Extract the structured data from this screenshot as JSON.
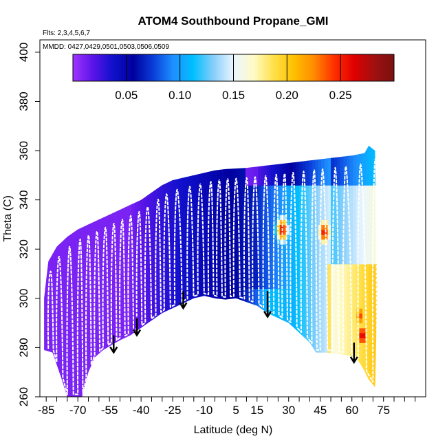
{
  "chart_data": {
    "type": "heatmap",
    "title": "ATOM4 Southbound Propane_GMI",
    "flights_label": "Flts: 2,3,4,5,6,7",
    "dates_label": "MMDD: 0427,0429,0501,0503,0506,0509",
    "xlabel": "Latitude (deg N)",
    "ylabel": "Theta (C)",
    "xlim": [
      -88,
      95
    ],
    "ylim": [
      260,
      405
    ],
    "x_ticks": [
      -85,
      -70,
      -55,
      -40,
      -25,
      -10,
      5,
      15,
      30,
      45,
      60,
      75
    ],
    "x_tick_labels": [
      "-85",
      "-70",
      "-55",
      "-40",
      "-25",
      "-10",
      "5",
      "15",
      "30",
      "45",
      "60",
      "75"
    ],
    "x_minor_step": 5,
    "y_ticks": [
      260,
      280,
      300,
      320,
      340,
      360,
      380,
      400
    ],
    "y_tick_labels": [
      "260",
      "280",
      "300",
      "320",
      "340",
      "360",
      "380",
      "400"
    ],
    "colorbar": {
      "min": 0.0,
      "max": 0.3,
      "ticks": [
        0.05,
        0.1,
        0.15,
        0.2,
        0.25
      ],
      "tick_labels": [
        "0.05",
        "0.10",
        "0.15",
        "0.20",
        "0.25"
      ],
      "colors": [
        "#9f34ff",
        "#5a14e8",
        "#1010cc",
        "#00009f",
        "#0a3dd8",
        "#1e90ff",
        "#00bfff",
        "#87cefa",
        "#eaf6ff",
        "#fffbc8",
        "#ffe14a",
        "#ffc000",
        "#ff8c00",
        "#ff3000",
        "#e00000",
        "#a01010",
        "#7a1010"
      ]
    },
    "domain": {
      "lower_boundary": [
        [
          -86,
          279
        ],
        [
          -82,
          278
        ],
        [
          -78,
          268
        ],
        [
          -75,
          260
        ],
        [
          -68,
          260
        ],
        [
          -65,
          270
        ],
        [
          -62,
          276
        ],
        [
          -58,
          279
        ],
        [
          -54,
          281
        ],
        [
          -50,
          283
        ],
        [
          -45,
          285
        ],
        [
          -40,
          288
        ],
        [
          -35,
          291
        ],
        [
          -30,
          294
        ],
        [
          -25,
          296
        ],
        [
          -20,
          298
        ],
        [
          -15,
          300
        ],
        [
          -10,
          301
        ],
        [
          -5,
          300
        ],
        [
          0,
          299.5
        ],
        [
          5,
          300
        ],
        [
          10,
          298.5
        ],
        [
          15,
          297
        ],
        [
          20,
          294
        ],
        [
          25,
          292
        ],
        [
          30,
          290
        ],
        [
          35,
          286
        ],
        [
          40,
          282
        ],
        [
          43,
          278
        ],
        [
          48,
          278
        ],
        [
          53,
          277.5
        ],
        [
          57,
          277
        ],
        [
          62,
          276
        ],
        [
          65,
          272
        ],
        [
          68,
          267
        ],
        [
          71,
          264
        ]
      ],
      "upper_boundary": [
        [
          -86,
          300
        ],
        [
          -84,
          315
        ],
        [
          -80,
          321
        ],
        [
          -75,
          325
        ],
        [
          -70,
          328
        ],
        [
          -65,
          330
        ],
        [
          -60,
          332
        ],
        [
          -55,
          334
        ],
        [
          -50,
          336
        ],
        [
          -45,
          338
        ],
        [
          -40,
          340
        ],
        [
          -35,
          343
        ],
        [
          -30,
          346
        ],
        [
          -25,
          348
        ],
        [
          -20,
          349
        ],
        [
          -15,
          350
        ],
        [
          -10,
          351
        ],
        [
          -5,
          352
        ],
        [
          0,
          352.5
        ],
        [
          10,
          353
        ],
        [
          20,
          354
        ],
        [
          30,
          355
        ],
        [
          40,
          356
        ],
        [
          50,
          357
        ],
        [
          60,
          358
        ],
        [
          66,
          359
        ],
        [
          68,
          362
        ],
        [
          71,
          360
        ],
        [
          72,
          300
        ]
      ]
    },
    "hotspots": [
      {
        "lat": 27,
        "theta": 328,
        "value": 0.27
      },
      {
        "lat": 47,
        "theta": 327,
        "value": 0.26
      },
      {
        "lat": 65,
        "theta": 285,
        "value": 0.27
      },
      {
        "lat": 64,
        "theta": 293,
        "value": 0.24
      }
    ],
    "profile_vertical_lats": [
      -84,
      -80,
      -75,
      -70,
      -66,
      -62,
      -58,
      -54,
      -50,
      -46,
      -42,
      -38,
      -33,
      -29,
      -24,
      -18,
      -13,
      -8,
      -4,
      0,
      4,
      9,
      13,
      18,
      23,
      27,
      31,
      36,
      41,
      45,
      51,
      56,
      63,
      70
    ],
    "arrows": [
      {
        "lat": -53,
        "theta_top": 285,
        "theta_tip": 278
      },
      {
        "lat": -42,
        "theta_top": 292,
        "theta_tip": 285
      },
      {
        "lat": -20,
        "theta_top": 303,
        "theta_tip": 296
      },
      {
        "lat": 20,
        "theta_top": 303,
        "theta_tip": 292.5
      },
      {
        "lat": 61,
        "theta_top": 282,
        "theta_tip": 274
      }
    ]
  }
}
